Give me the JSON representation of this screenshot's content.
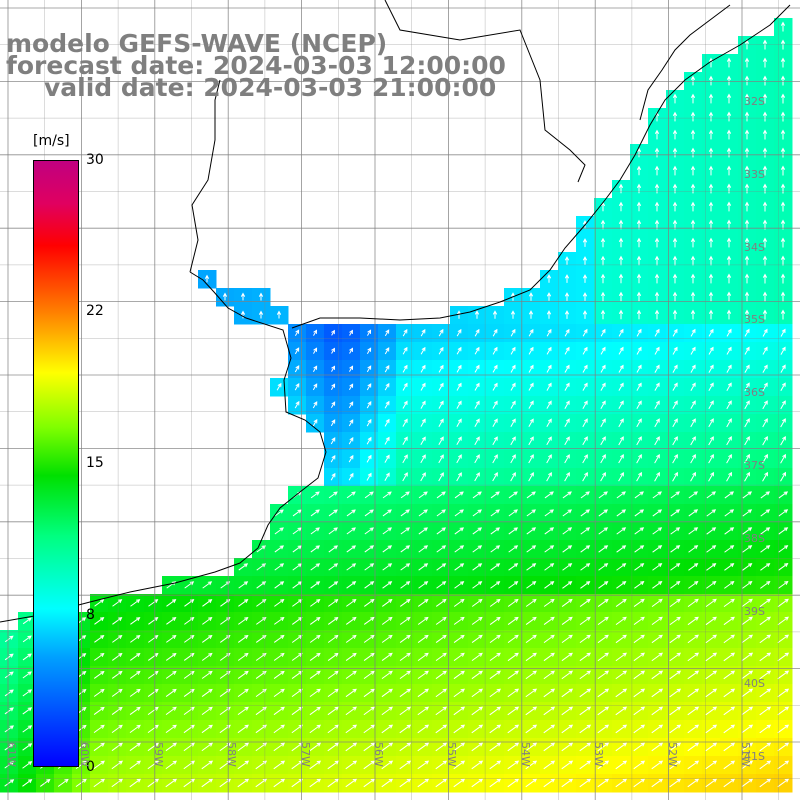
{
  "title": {
    "line1": "modelo GEFS-WAVE (NCEP)",
    "line2": "forecast date: 2024-03-03 12:00:00",
    "line3": "valid date: 2024-03-03 21:00:00"
  },
  "colorbar": {
    "unit": "[m/s]",
    "ticks": [
      "30",
      "22",
      "15",
      "8",
      "0"
    ],
    "colors": [
      "#0000ff",
      "#00a0ff",
      "#00ffff",
      "#00ff80",
      "#00e000",
      "#80ff00",
      "#ffff00",
      "#ff8000",
      "#ff0000",
      "#c00080"
    ]
  },
  "axes": {
    "lat_labels": [
      "32S",
      "33S",
      "34S",
      "35S",
      "36S",
      "37S",
      "38S",
      "39S",
      "40S",
      "41S"
    ],
    "lon_labels": [
      "61W",
      "60W",
      "59W",
      "58W",
      "57W",
      "56W",
      "55W",
      "54W",
      "53W",
      "52W",
      "51W"
    ]
  },
  "map": {
    "variable": "wind speed",
    "colors": {
      "land": "#ffffff",
      "coast": "#000000",
      "grid": "#808080"
    }
  }
}
